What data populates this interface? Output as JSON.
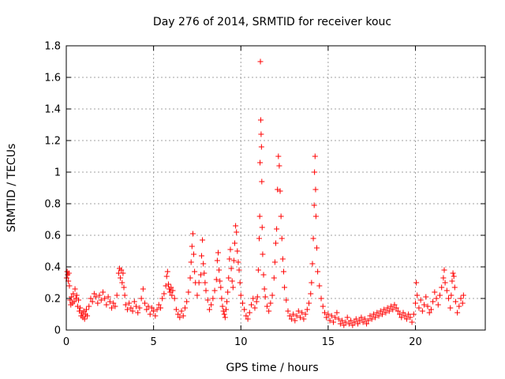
{
  "chart_data": {
    "type": "scatter",
    "title": "Day 276 of 2014, SRMTID for receiver kouc",
    "xlabel": "GPS time / hours",
    "ylabel": "SRMTID / TECUs",
    "xlim": [
      0,
      24
    ],
    "ylim": [
      0,
      1.8
    ],
    "xticks": [
      0,
      5,
      10,
      15,
      20
    ],
    "xtick_labels": [
      "0",
      "5",
      "10",
      "15",
      "20"
    ],
    "yticks": [
      0,
      0.2,
      0.4,
      0.6,
      0.8,
      1,
      1.2,
      1.4,
      1.6,
      1.8
    ],
    "ytick_labels": [
      "0",
      "0.2",
      "0.4",
      "0.6",
      "0.8",
      "1",
      "1.2",
      "1.4",
      "1.6",
      "1.8"
    ],
    "grid": true,
    "marker": "+",
    "color": "#ff0000",
    "series": [
      {
        "name": "SRMTID",
        "points": [
          [
            0.02,
            0.33
          ],
          [
            0.05,
            0.37
          ],
          [
            0.08,
            0.35
          ],
          [
            0.12,
            0.31
          ],
          [
            0.15,
            0.36
          ],
          [
            0.18,
            0.28
          ],
          [
            0.22,
            0.19
          ],
          [
            0.26,
            0.16
          ],
          [
            0.3,
            0.21
          ],
          [
            0.35,
            0.17
          ],
          [
            0.4,
            0.23
          ],
          [
            0.45,
            0.18
          ],
          [
            0.5,
            0.26
          ],
          [
            0.55,
            0.2
          ],
          [
            0.6,
            0.22
          ],
          [
            0.65,
            0.15
          ],
          [
            0.7,
            0.19
          ],
          [
            0.75,
            0.12
          ],
          [
            0.8,
            0.14
          ],
          [
            0.85,
            0.09
          ],
          [
            0.9,
            0.11
          ],
          [
            0.95,
            0.08
          ],
          [
            1.0,
            0.12
          ],
          [
            1.05,
            0.07
          ],
          [
            1.1,
            0.1
          ],
          [
            1.15,
            0.13
          ],
          [
            1.2,
            0.09
          ],
          [
            1.3,
            0.15
          ],
          [
            1.4,
            0.2
          ],
          [
            1.5,
            0.18
          ],
          [
            1.6,
            0.23
          ],
          [
            1.7,
            0.21
          ],
          [
            1.8,
            0.17
          ],
          [
            1.9,
            0.22
          ],
          [
            2.0,
            0.19
          ],
          [
            2.1,
            0.24
          ],
          [
            2.2,
            0.2
          ],
          [
            2.3,
            0.16
          ],
          [
            2.4,
            0.21
          ],
          [
            2.5,
            0.18
          ],
          [
            2.6,
            0.14
          ],
          [
            2.7,
            0.17
          ],
          [
            2.8,
            0.15
          ],
          [
            2.9,
            0.22
          ],
          [
            3.0,
            0.36
          ],
          [
            3.05,
            0.39
          ],
          [
            3.1,
            0.33
          ],
          [
            3.15,
            0.38
          ],
          [
            3.2,
            0.3
          ],
          [
            3.25,
            0.36
          ],
          [
            3.3,
            0.27
          ],
          [
            3.35,
            0.22
          ],
          [
            3.4,
            0.16
          ],
          [
            3.5,
            0.13
          ],
          [
            3.6,
            0.17
          ],
          [
            3.7,
            0.14
          ],
          [
            3.8,
            0.12
          ],
          [
            3.9,
            0.18
          ],
          [
            4.0,
            0.15
          ],
          [
            4.1,
            0.11
          ],
          [
            4.2,
            0.14
          ],
          [
            4.3,
            0.2
          ],
          [
            4.4,
            0.26
          ],
          [
            4.5,
            0.17
          ],
          [
            4.6,
            0.13
          ],
          [
            4.7,
            0.15
          ],
          [
            4.8,
            0.1
          ],
          [
            4.9,
            0.14
          ],
          [
            5.0,
            0.12
          ],
          [
            5.1,
            0.09
          ],
          [
            5.2,
            0.13
          ],
          [
            5.3,
            0.16
          ],
          [
            5.4,
            0.14
          ],
          [
            5.5,
            0.2
          ],
          [
            5.6,
            0.23
          ],
          [
            5.7,
            0.28
          ],
          [
            5.75,
            0.34
          ],
          [
            5.8,
            0.37
          ],
          [
            5.85,
            0.29
          ],
          [
            5.9,
            0.26
          ],
          [
            5.95,
            0.24
          ],
          [
            6.0,
            0.27
          ],
          [
            6.05,
            0.22
          ],
          [
            6.1,
            0.25
          ],
          [
            6.2,
            0.2
          ],
          [
            6.3,
            0.13
          ],
          [
            6.4,
            0.1
          ],
          [
            6.5,
            0.08
          ],
          [
            6.6,
            0.12
          ],
          [
            6.7,
            0.09
          ],
          [
            6.8,
            0.14
          ],
          [
            6.9,
            0.18
          ],
          [
            7.0,
            0.24
          ],
          [
            7.1,
            0.33
          ],
          [
            7.15,
            0.43
          ],
          [
            7.2,
            0.53
          ],
          [
            7.25,
            0.61
          ],
          [
            7.3,
            0.48
          ],
          [
            7.35,
            0.37
          ],
          [
            7.4,
            0.3
          ],
          [
            7.5,
            0.22
          ],
          [
            7.6,
            0.3
          ],
          [
            7.7,
            0.35
          ],
          [
            7.75,
            0.47
          ],
          [
            7.8,
            0.57
          ],
          [
            7.85,
            0.42
          ],
          [
            7.9,
            0.36
          ],
          [
            7.95,
            0.3
          ],
          [
            8.0,
            0.25
          ],
          [
            8.1,
            0.19
          ],
          [
            8.2,
            0.13
          ],
          [
            8.3,
            0.16
          ],
          [
            8.4,
            0.2
          ],
          [
            8.5,
            0.25
          ],
          [
            8.6,
            0.32
          ],
          [
            8.65,
            0.44
          ],
          [
            8.7,
            0.49
          ],
          [
            8.75,
            0.38
          ],
          [
            8.8,
            0.31
          ],
          [
            8.85,
            0.27
          ],
          [
            8.9,
            0.2
          ],
          [
            8.95,
            0.15
          ],
          [
            9.0,
            0.12
          ],
          [
            9.05,
            0.1
          ],
          [
            9.1,
            0.08
          ],
          [
            9.15,
            0.13
          ],
          [
            9.2,
            0.18
          ],
          [
            9.25,
            0.24
          ],
          [
            9.3,
            0.33
          ],
          [
            9.35,
            0.45
          ],
          [
            9.4,
            0.51
          ],
          [
            9.45,
            0.39
          ],
          [
            9.5,
            0.31
          ],
          [
            9.55,
            0.27
          ],
          [
            9.6,
            0.44
          ],
          [
            9.65,
            0.55
          ],
          [
            9.7,
            0.66
          ],
          [
            9.75,
            0.62
          ],
          [
            9.8,
            0.5
          ],
          [
            9.85,
            0.43
          ],
          [
            9.9,
            0.38
          ],
          [
            9.95,
            0.3
          ],
          [
            10.0,
            0.22
          ],
          [
            10.1,
            0.17
          ],
          [
            10.2,
            0.13
          ],
          [
            10.3,
            0.09
          ],
          [
            10.4,
            0.07
          ],
          [
            10.5,
            0.11
          ],
          [
            10.6,
            0.16
          ],
          [
            10.7,
            0.2
          ],
          [
            10.8,
            0.14
          ],
          [
            10.9,
            0.18
          ],
          [
            10.95,
            0.21
          ],
          [
            11.0,
            0.38
          ],
          [
            11.05,
            0.58
          ],
          [
            11.08,
            0.72
          ],
          [
            11.1,
            1.06
          ],
          [
            11.12,
            1.7
          ],
          [
            11.14,
            1.33
          ],
          [
            11.16,
            1.24
          ],
          [
            11.18,
            1.16
          ],
          [
            11.2,
            0.94
          ],
          [
            11.22,
            0.65
          ],
          [
            11.25,
            0.48
          ],
          [
            11.3,
            0.35
          ],
          [
            11.35,
            0.26
          ],
          [
            11.4,
            0.21
          ],
          [
            11.5,
            0.15
          ],
          [
            11.6,
            0.12
          ],
          [
            11.7,
            0.17
          ],
          [
            11.8,
            0.22
          ],
          [
            11.9,
            0.33
          ],
          [
            11.95,
            0.43
          ],
          [
            12.0,
            0.55
          ],
          [
            12.05,
            0.64
          ],
          [
            12.1,
            0.89
          ],
          [
            12.15,
            1.1
          ],
          [
            12.2,
            1.04
          ],
          [
            12.25,
            0.88
          ],
          [
            12.3,
            0.72
          ],
          [
            12.35,
            0.58
          ],
          [
            12.4,
            0.45
          ],
          [
            12.45,
            0.37
          ],
          [
            12.5,
            0.27
          ],
          [
            12.6,
            0.19
          ],
          [
            12.7,
            0.12
          ],
          [
            12.8,
            0.09
          ],
          [
            12.9,
            0.07
          ],
          [
            13.0,
            0.1
          ],
          [
            13.1,
            0.06
          ],
          [
            13.2,
            0.09
          ],
          [
            13.3,
            0.12
          ],
          [
            13.4,
            0.08
          ],
          [
            13.5,
            0.11
          ],
          [
            13.6,
            0.07
          ],
          [
            13.7,
            0.1
          ],
          [
            13.8,
            0.13
          ],
          [
            13.9,
            0.17
          ],
          [
            14.0,
            0.23
          ],
          [
            14.05,
            0.3
          ],
          [
            14.1,
            0.42
          ],
          [
            14.15,
            0.58
          ],
          [
            14.2,
            0.79
          ],
          [
            14.22,
            1.0
          ],
          [
            14.25,
            1.1
          ],
          [
            14.28,
            0.89
          ],
          [
            14.3,
            0.72
          ],
          [
            14.35,
            0.52
          ],
          [
            14.4,
            0.37
          ],
          [
            14.5,
            0.28
          ],
          [
            14.6,
            0.2
          ],
          [
            14.7,
            0.15
          ],
          [
            14.8,
            0.11
          ],
          [
            14.9,
            0.08
          ],
          [
            15.0,
            0.1
          ],
          [
            15.1,
            0.06
          ],
          [
            15.2,
            0.09
          ],
          [
            15.3,
            0.05
          ],
          [
            15.4,
            0.08
          ],
          [
            15.5,
            0.11
          ],
          [
            15.6,
            0.07
          ],
          [
            15.7,
            0.04
          ],
          [
            15.8,
            0.06
          ],
          [
            15.9,
            0.03
          ],
          [
            16.0,
            0.05
          ],
          [
            16.1,
            0.08
          ],
          [
            16.2,
            0.04
          ],
          [
            16.3,
            0.06
          ],
          [
            16.4,
            0.03
          ],
          [
            16.5,
            0.05
          ],
          [
            16.6,
            0.07
          ],
          [
            16.7,
            0.04
          ],
          [
            16.8,
            0.06
          ],
          [
            16.9,
            0.08
          ],
          [
            17.0,
            0.05
          ],
          [
            17.1,
            0.07
          ],
          [
            17.2,
            0.04
          ],
          [
            17.3,
            0.06
          ],
          [
            17.4,
            0.09
          ],
          [
            17.5,
            0.07
          ],
          [
            17.6,
            0.1
          ],
          [
            17.7,
            0.08
          ],
          [
            17.8,
            0.11
          ],
          [
            17.9,
            0.09
          ],
          [
            18.0,
            0.12
          ],
          [
            18.1,
            0.1
          ],
          [
            18.2,
            0.13
          ],
          [
            18.3,
            0.11
          ],
          [
            18.4,
            0.14
          ],
          [
            18.5,
            0.12
          ],
          [
            18.6,
            0.15
          ],
          [
            18.7,
            0.13
          ],
          [
            18.8,
            0.16
          ],
          [
            18.9,
            0.14
          ],
          [
            19.0,
            0.12
          ],
          [
            19.1,
            0.1
          ],
          [
            19.2,
            0.08
          ],
          [
            19.3,
            0.11
          ],
          [
            19.4,
            0.09
          ],
          [
            19.5,
            0.07
          ],
          [
            19.6,
            0.1
          ],
          [
            19.7,
            0.08
          ],
          [
            19.8,
            0.05
          ],
          [
            19.9,
            0.1
          ],
          [
            20.0,
            0.17
          ],
          [
            20.05,
            0.3
          ],
          [
            20.1,
            0.22
          ],
          [
            20.2,
            0.14
          ],
          [
            20.3,
            0.19
          ],
          [
            20.4,
            0.12
          ],
          [
            20.5,
            0.16
          ],
          [
            20.6,
            0.21
          ],
          [
            20.7,
            0.15
          ],
          [
            20.8,
            0.11
          ],
          [
            20.9,
            0.13
          ],
          [
            21.0,
            0.18
          ],
          [
            21.1,
            0.24
          ],
          [
            21.2,
            0.2
          ],
          [
            21.3,
            0.16
          ],
          [
            21.4,
            0.22
          ],
          [
            21.5,
            0.27
          ],
          [
            21.6,
            0.33
          ],
          [
            21.65,
            0.38
          ],
          [
            21.7,
            0.3
          ],
          [
            21.8,
            0.25
          ],
          [
            21.9,
            0.2
          ],
          [
            22.0,
            0.14
          ],
          [
            22.05,
            0.22
          ],
          [
            22.1,
            0.31
          ],
          [
            22.15,
            0.36
          ],
          [
            22.2,
            0.34
          ],
          [
            22.25,
            0.27
          ],
          [
            22.3,
            0.18
          ],
          [
            22.4,
            0.11
          ],
          [
            22.5,
            0.15
          ],
          [
            22.6,
            0.2
          ],
          [
            22.7,
            0.17
          ],
          [
            22.75,
            0.22
          ]
        ]
      }
    ]
  }
}
